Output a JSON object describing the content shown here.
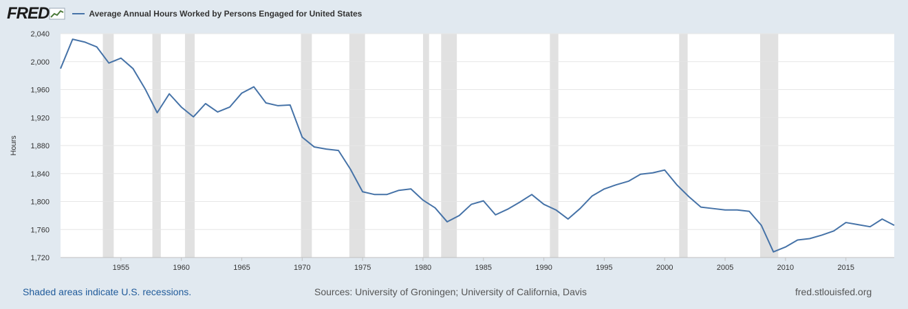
{
  "header": {
    "logo_text": "FRED",
    "series_title": "Average Annual Hours Worked by Persons Engaged for United States"
  },
  "footer": {
    "recession_note": "Shaded areas indicate U.S. recessions.",
    "sources": "Sources: University of Groningen; University of California, Davis",
    "site": "fred.stlouisfed.org"
  },
  "colors": {
    "line": "#4572a7",
    "recession": "#e1e1e1",
    "page_bg": "#e1e9f0",
    "plot_bg": "#ffffff"
  },
  "chart_data": {
    "type": "line",
    "title": "Average Annual Hours Worked by Persons Engaged for United States",
    "ylabel": "Hours",
    "xlabel": "",
    "ylim": [
      1720,
      2040
    ],
    "xlim": [
      1950,
      2019
    ],
    "yticks": [
      1720,
      1760,
      1800,
      1840,
      1880,
      1920,
      1960,
      2000,
      2040
    ],
    "ytick_labels": [
      "1,720",
      "1,760",
      "1,800",
      "1,840",
      "1,880",
      "1,920",
      "1,960",
      "2,000",
      "2,040"
    ],
    "xticks": [
      1955,
      1960,
      1965,
      1970,
      1975,
      1980,
      1985,
      1990,
      1995,
      2000,
      2005,
      2010,
      2015
    ],
    "xtick_labels": [
      "1955",
      "1960",
      "1965",
      "1970",
      "1975",
      "1980",
      "1985",
      "1990",
      "1995",
      "2000",
      "2005",
      "2010",
      "2015"
    ],
    "grid": "horizontal",
    "recessions": [
      [
        1953.5,
        1954.4
      ],
      [
        1957.6,
        1958.3
      ],
      [
        1960.3,
        1961.1
      ],
      [
        1969.9,
        1970.8
      ],
      [
        1973.9,
        1975.2
      ],
      [
        1980.0,
        1980.5
      ],
      [
        1981.5,
        1982.8
      ],
      [
        1990.5,
        1991.2
      ],
      [
        2001.2,
        2001.9
      ],
      [
        2007.9,
        2009.4
      ]
    ],
    "series": [
      {
        "x": [
          1950,
          1951,
          1952,
          1953,
          1954,
          1955,
          1956,
          1957,
          1958,
          1959,
          1960,
          1961,
          1962,
          1963,
          1964,
          1965,
          1966,
          1967,
          1968,
          1969,
          1970,
          1971,
          1972,
          1973,
          1974,
          1975,
          1976,
          1977,
          1978,
          1979,
          1980,
          1981,
          1982,
          1983,
          1984,
          1985,
          1986,
          1987,
          1988,
          1989,
          1990,
          1991,
          1992,
          1993,
          1994,
          1995,
          1996,
          1997,
          1998,
          1999,
          2000,
          2001,
          2002,
          2003,
          2004,
          2005,
          2006,
          2007,
          2008,
          2009,
          2010,
          2011,
          2012,
          2013,
          2014,
          2015,
          2016,
          2017,
          2018,
          2019
        ],
        "values": [
          1990,
          2032,
          2028,
          2021,
          1998,
          2005,
          1990,
          1961,
          1927,
          1954,
          1935,
          1921,
          1940,
          1928,
          1935,
          1955,
          1964,
          1941,
          1937,
          1938,
          1892,
          1878,
          1875,
          1873,
          1846,
          1814,
          1810,
          1810,
          1816,
          1818,
          1802,
          1791,
          1771,
          1780,
          1796,
          1801,
          1781,
          1789,
          1799,
          1810,
          1796,
          1788,
          1775,
          1790,
          1808,
          1818,
          1824,
          1829,
          1839,
          1841,
          1845,
          1824,
          1807,
          1792,
          1790,
          1788,
          1788,
          1786,
          1766,
          1728,
          1735,
          1745,
          1747,
          1752,
          1758,
          1770,
          1767,
          1764,
          1775,
          1766
        ]
      }
    ]
  }
}
